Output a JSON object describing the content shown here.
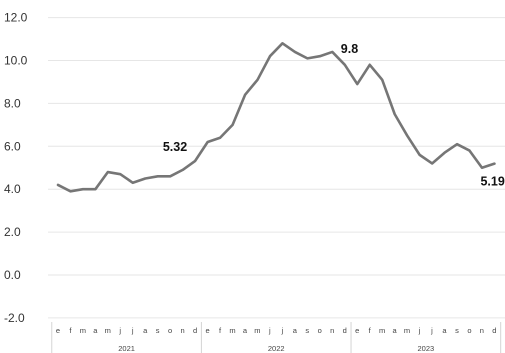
{
  "chart_data": {
    "type": "line",
    "title": "",
    "xlabel": "",
    "ylabel": "",
    "ylim": [
      -2.0,
      12.0
    ],
    "y_ticks": [
      -2.0,
      0.0,
      2.0,
      4.0,
      6.0,
      8.0,
      10.0,
      12.0
    ],
    "y_tick_labels": [
      "-2.0",
      "0.0",
      "2.0",
      "4.0",
      "6.0",
      "8.0",
      "10.0",
      "12.0"
    ],
    "grid": true,
    "legend": "none",
    "line_color": "#767676",
    "years": [
      {
        "label": "2021",
        "months": [
          "e",
          "f",
          "m",
          "a",
          "m",
          "j",
          "j",
          "a",
          "s",
          "o",
          "n",
          "d"
        ]
      },
      {
        "label": "2022",
        "months": [
          "e",
          "f",
          "m",
          "a",
          "m",
          "j",
          "j",
          "a",
          "s",
          "o",
          "n",
          "d"
        ]
      },
      {
        "label": "2023",
        "months": [
          "e",
          "f",
          "m",
          "a",
          "m",
          "j",
          "j",
          "a",
          "s",
          "o",
          "n",
          "d"
        ]
      }
    ],
    "series": [
      {
        "values": [
          4.2,
          3.9,
          4.0,
          4.0,
          4.8,
          4.7,
          4.3,
          4.5,
          4.6,
          4.6,
          4.9,
          5.32,
          6.2,
          6.4,
          7.0,
          8.4,
          9.1,
          10.2,
          10.8,
          10.4,
          10.1,
          10.2,
          10.4,
          9.8,
          8.9,
          9.8,
          9.1,
          7.5,
          6.5,
          5.6,
          5.2,
          5.7,
          6.1,
          5.8,
          5.0,
          5.19
        ]
      }
    ],
    "annotations": [
      {
        "index": 11,
        "text": "5.32"
      },
      {
        "index": 23,
        "text": "9.8"
      },
      {
        "index": 35,
        "text": "5.19"
      }
    ]
  }
}
